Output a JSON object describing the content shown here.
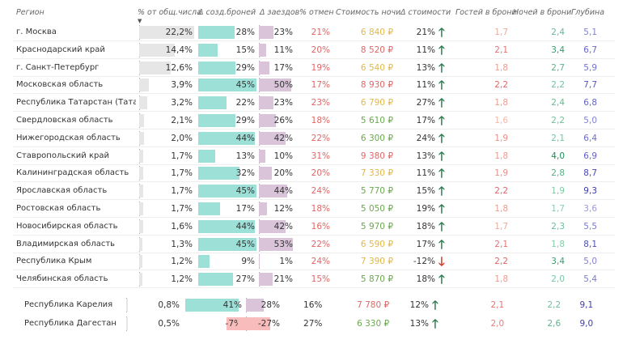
{
  "headers": {
    "region": "Регион",
    "share": "% от общ.числа",
    "bookings_delta": "Δ созд.броней",
    "checkins_delta": "Δ заездов",
    "cancel": "% отмен",
    "price": "Стоимость ночи",
    "price_delta": "Δ стоимости",
    "guests": "Гостей в брони",
    "nights": "Ночей в брони",
    "depth": "Глубина"
  },
  "rows": [
    {
      "region": "г. Москва",
      "share": "22,2%",
      "share_v": 22.2,
      "bookings": "28%",
      "bookings_v": 28,
      "checkins": "23%",
      "checkins_v": 23,
      "cancel": "21%",
      "price": "6 840 ₽",
      "price_delta": "21%",
      "dir": "up",
      "guests": "1,7",
      "nights": "2,4",
      "depth": "5,1"
    },
    {
      "region": "Краснодарский край",
      "share": "14,4%",
      "share_v": 14.4,
      "bookings": "15%",
      "bookings_v": 15,
      "checkins": "11%",
      "checkins_v": 11,
      "cancel": "20%",
      "price": "8 520 ₽",
      "price_delta": "11%",
      "dir": "up",
      "guests": "2,1",
      "nights": "3,4",
      "depth": "6,7"
    },
    {
      "region": "г. Санкт-Петербург",
      "share": "12,6%",
      "share_v": 12.6,
      "bookings": "29%",
      "bookings_v": 29,
      "checkins": "17%",
      "checkins_v": 17,
      "cancel": "19%",
      "price": "6 540 ₽",
      "price_delta": "13%",
      "dir": "up",
      "guests": "1,8",
      "nights": "2,7",
      "depth": "5,9"
    },
    {
      "region": "Московская область",
      "share": "3,9%",
      "share_v": 3.9,
      "bookings": "45%",
      "bookings_v": 45,
      "checkins": "50%",
      "checkins_v": 50,
      "cancel": "17%",
      "price": "8 930 ₽",
      "price_delta": "11%",
      "dir": "up",
      "guests": "2,2",
      "nights": "2,2",
      "depth": "7,7"
    },
    {
      "region": "Республика Татарстан (Татарстан)",
      "share": "3,2%",
      "share_v": 3.2,
      "bookings": "22%",
      "bookings_v": 22,
      "checkins": "23%",
      "checkins_v": 23,
      "cancel": "23%",
      "price": "6 790 ₽",
      "price_delta": "27%",
      "dir": "up",
      "guests": "1,8",
      "nights": "2,4",
      "depth": "6,8"
    },
    {
      "region": "Свердловская область",
      "share": "2,1%",
      "share_v": 2.1,
      "bookings": "29%",
      "bookings_v": 29,
      "checkins": "26%",
      "checkins_v": 26,
      "cancel": "18%",
      "price": "5 610 ₽",
      "price_delta": "17%",
      "dir": "up",
      "guests": "1,6",
      "nights": "2,2",
      "depth": "5,0"
    },
    {
      "region": "Нижегородская область",
      "share": "2,0%",
      "share_v": 2.0,
      "bookings": "44%",
      "bookings_v": 44,
      "checkins": "42%",
      "checkins_v": 42,
      "cancel": "22%",
      "price": "6 300 ₽",
      "price_delta": "24%",
      "dir": "up",
      "guests": "1,9",
      "nights": "2,1",
      "depth": "6,4"
    },
    {
      "region": "Ставропольский край",
      "share": "1,7%",
      "share_v": 1.7,
      "bookings": "13%",
      "bookings_v": 13,
      "checkins": "10%",
      "checkins_v": 10,
      "cancel": "31%",
      "price": "9 380 ₽",
      "price_delta": "13%",
      "dir": "up",
      "guests": "1,8",
      "nights": "4,0",
      "depth": "6,9"
    },
    {
      "region": "Калининградская область",
      "share": "1,7%",
      "share_v": 1.7,
      "bookings": "32%",
      "bookings_v": 32,
      "checkins": "20%",
      "checkins_v": 20,
      "cancel": "20%",
      "price": "7 330 ₽",
      "price_delta": "11%",
      "dir": "up",
      "guests": "1,9",
      "nights": "2,8",
      "depth": "8,7"
    },
    {
      "region": "Ярославская область",
      "share": "1,7%",
      "share_v": 1.7,
      "bookings": "45%",
      "bookings_v": 45,
      "checkins": "44%",
      "checkins_v": 44,
      "cancel": "24%",
      "price": "5 770 ₽",
      "price_delta": "15%",
      "dir": "up",
      "guests": "2,2",
      "nights": "1,9",
      "depth": "9,3"
    },
    {
      "region": "Ростовская область",
      "share": "1,7%",
      "share_v": 1.7,
      "bookings": "17%",
      "bookings_v": 17,
      "checkins": "12%",
      "checkins_v": 12,
      "cancel": "18%",
      "price": "5 050 ₽",
      "price_delta": "19%",
      "dir": "up",
      "guests": "1,8",
      "nights": "1,7",
      "depth": "3,6"
    },
    {
      "region": "Новосибирская область",
      "share": "1,6%",
      "share_v": 1.6,
      "bookings": "44%",
      "bookings_v": 44,
      "checkins": "42%",
      "checkins_v": 42,
      "cancel": "16%",
      "price": "5 970 ₽",
      "price_delta": "18%",
      "dir": "up",
      "guests": "1,7",
      "nights": "2,3",
      "depth": "5,5"
    },
    {
      "region": "Владимирская область",
      "share": "1,3%",
      "share_v": 1.3,
      "bookings": "45%",
      "bookings_v": 45,
      "checkins": "53%",
      "checkins_v": 53,
      "cancel": "22%",
      "price": "6 590 ₽",
      "price_delta": "17%",
      "dir": "up",
      "guests": "2,1",
      "nights": "1,8",
      "depth": "8,1"
    },
    {
      "region": "Республика Крым",
      "share": "1,2%",
      "share_v": 1.2,
      "bookings": "9%",
      "bookings_v": 9,
      "checkins": "1%",
      "checkins_v": 1,
      "cancel": "24%",
      "price": "7 390 ₽",
      "price_delta": "-12%",
      "dir": "down",
      "guests": "2,2",
      "nights": "3,4",
      "depth": "5,0"
    },
    {
      "region": "Челябинская область",
      "share": "1,2%",
      "share_v": 1.2,
      "bookings": "27%",
      "bookings_v": 27,
      "checkins": "21%",
      "checkins_v": 21,
      "cancel": "15%",
      "price": "5 870 ₽",
      "price_delta": "18%",
      "dir": "up",
      "guests": "1,8",
      "nights": "2,0",
      "depth": "5,4"
    }
  ],
  "footer_rows": [
    {
      "region": "Республика Карелия",
      "share": "0,8%",
      "share_v": 0.8,
      "bookings": "41%",
      "bookings_v": 41,
      "checkins": "28%",
      "checkins_v": 28,
      "cancel": "16%",
      "price": "7 780 ₽",
      "price_delta": "12%",
      "dir": "up",
      "guests": "2,1",
      "nights": "2,2",
      "depth": "9,1"
    },
    {
      "region": "Республика Дагестан",
      "share": "0,5%",
      "share_v": 0.5,
      "bookings": "-7%",
      "bookings_v": -7,
      "checkins": "-27%",
      "checkins_v": -27,
      "cancel": "27%",
      "price": "6 330 ₽",
      "price_delta": "13%",
      "dir": "up",
      "guests": "2,0",
      "nights": "2,6",
      "depth": "9,0"
    }
  ],
  "colors": {
    "share_bar": "#e6e6e6",
    "bookings_bar": "#9ce0d8",
    "checkins_bar": "#d9c4da",
    "negative_bar": "#f8bcbc",
    "cancel": "#e06666",
    "price": "#e06666",
    "price_low": "#6aa84f",
    "price_mid": "#e0b84a",
    "arrow_up": "#2e7d4f",
    "arrow_down": "#d0392b",
    "guests_hi": "#e06666",
    "guests_lo": "#f2b8a8",
    "nights_hi": "#1e8c5a",
    "nights_lo": "#88cfae",
    "depth_hi": "#3b3bb0",
    "depth_lo": "#9a9ad8"
  },
  "icons": {
    "up": "arrow-up-icon",
    "down": "arrow-down-icon",
    "sort": "sort-desc-icon"
  }
}
